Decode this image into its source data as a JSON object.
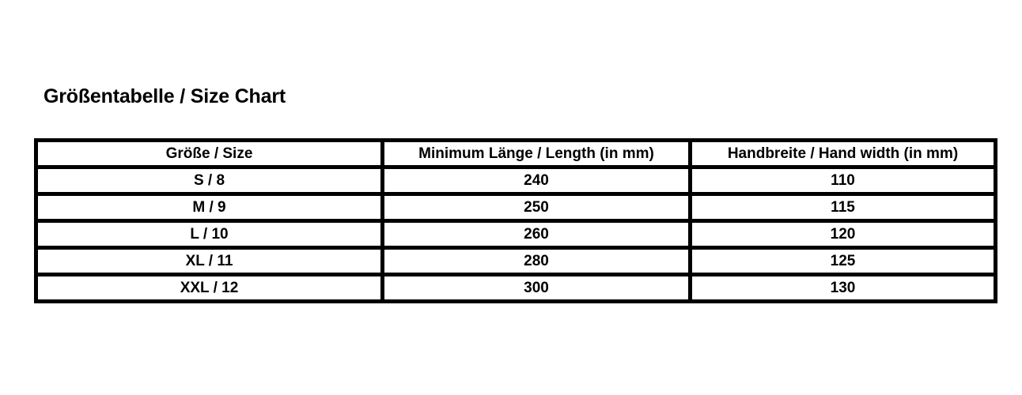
{
  "page": {
    "title": "Größentabelle / Size Chart"
  },
  "size_table": {
    "columns": [
      "Größe / Size",
      "Minimum Länge / Length (in mm)",
      "Handbreite / Hand width (in mm)"
    ],
    "rows": [
      {
        "size": "S / 8",
        "min_length_mm": "240",
        "hand_width_mm": "110"
      },
      {
        "size": "M / 9",
        "min_length_mm": "250",
        "hand_width_mm": "115"
      },
      {
        "size": "L / 10",
        "min_length_mm": "260",
        "hand_width_mm": "120"
      },
      {
        "size": "XL / 11",
        "min_length_mm": "280",
        "hand_width_mm": "125"
      },
      {
        "size": "XXL / 12",
        "min_length_mm": "300",
        "hand_width_mm": "130"
      }
    ]
  },
  "colors": {
    "background": "#ffffff",
    "border": "#000000",
    "text": "#000000"
  },
  "chart_data": {
    "type": "table",
    "title": "Größentabelle / Size Chart",
    "columns": [
      "Größe / Size",
      "Minimum Länge / Length (in mm)",
      "Handbreite / Hand width (in mm)"
    ],
    "rows": [
      [
        "S / 8",
        240,
        110
      ],
      [
        "M / 9",
        250,
        115
      ],
      [
        "L / 10",
        260,
        120
      ],
      [
        "XL / 11",
        280,
        125
      ],
      [
        "XXL / 12",
        300,
        130
      ]
    ]
  }
}
